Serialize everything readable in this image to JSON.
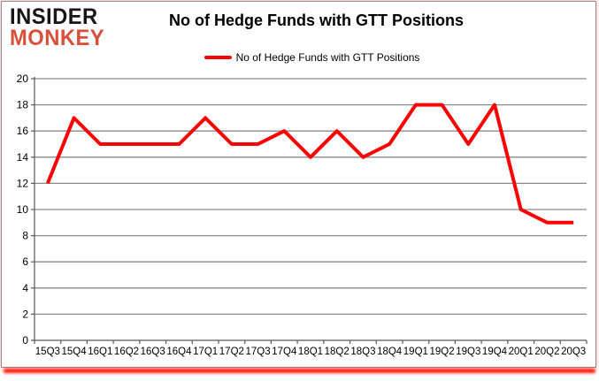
{
  "logo": {
    "line1": "INSIDER",
    "line2": "MONKEY"
  },
  "header": {
    "title": "No of Hedge Funds with GTT Positions"
  },
  "legend": {
    "label": "No of Hedge Funds with GTT Positions"
  },
  "chart_data": {
    "type": "line",
    "title": "No of Hedge Funds with GTT Positions",
    "categories": [
      "15Q3",
      "15Q4",
      "16Q1",
      "16Q2",
      "16Q3",
      "16Q4",
      "17Q1",
      "17Q2",
      "17Q3",
      "17Q4",
      "18Q1",
      "18Q2",
      "18Q3",
      "18Q4",
      "19Q1",
      "19Q2",
      "19Q3",
      "19Q4",
      "20Q1",
      "20Q2",
      "20Q3"
    ],
    "series": [
      {
        "name": "No of Hedge Funds with GTT Positions",
        "color": "#ff0000",
        "values": [
          12,
          17,
          15,
          15,
          15,
          15,
          17,
          15,
          15,
          16,
          14,
          16,
          14,
          15,
          18,
          18,
          15,
          18,
          10,
          9,
          9
        ]
      }
    ],
    "xlabel": "",
    "ylabel": "",
    "ylim": [
      0,
      20
    ],
    "ytick_step": 2,
    "grid": true,
    "legend_position": "top"
  },
  "colors": {
    "line": "#ff0000",
    "grid": "#8a8a8a",
    "axis": "#595959",
    "text": "#000000",
    "logo_black": "#161616",
    "logo_red": "#d94f3b",
    "border": "#8f8f8f",
    "shadow": "#ff0e00"
  }
}
